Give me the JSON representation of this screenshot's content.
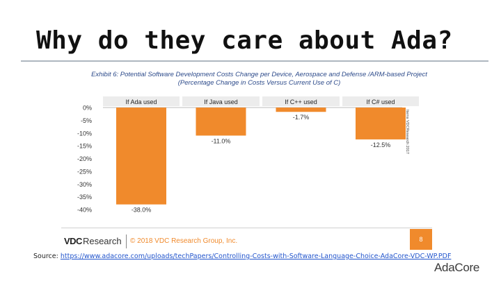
{
  "slide": {
    "title": "Why do they care about Ada?",
    "source_label": "Source:",
    "source_url": "https://www.adacore.com/uploads/techPapers/Controlling-Costs-with-Software-Language-Choice-AdaCore-VDC-WP.PDF",
    "brand": "AdaCore"
  },
  "chart_data": {
    "type": "bar",
    "title": "Exhibit 6: Potential Software Development Costs Change per Device, Aerospace and Defense /ARM-based Project",
    "subtitle": "(Percentage Change in Costs Versus Current Use of C)",
    "categories": [
      "If Ada used",
      "If Java used",
      "If C++ used",
      "If C# used"
    ],
    "values": [
      -38.0,
      -11.0,
      -1.7,
      -12.5
    ],
    "value_labels": [
      "-38.0%",
      "-11.0%",
      "-1.7%",
      "-12.5%"
    ],
    "y_ticks": [
      0,
      -5,
      -10,
      -15,
      -20,
      -25,
      -30,
      -35,
      -40
    ],
    "y_tick_labels": [
      "0%",
      "-5%",
      "-10%",
      "-15%",
      "-20%",
      "-25%",
      "-30%",
      "-35%",
      "-40%"
    ],
    "ylim": [
      -40,
      0
    ],
    "xlabel": "",
    "ylabel": "",
    "grid": false,
    "bar_color": "#f08a2c",
    "side_note": "Items VDCResearch 2017",
    "vendor_logo": {
      "bold": "VDC",
      "rest": "Research"
    },
    "copyright": "© 2018 VDC Research Group, Inc.",
    "page_number": "8"
  }
}
